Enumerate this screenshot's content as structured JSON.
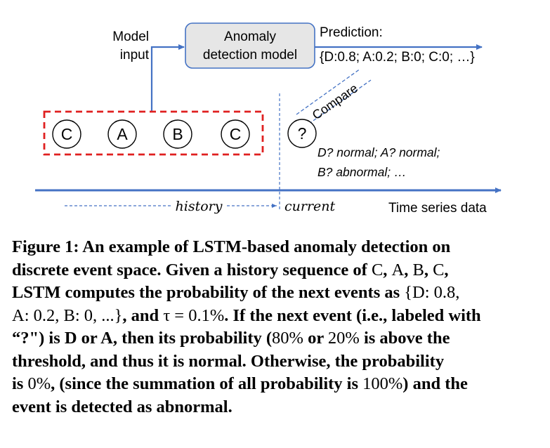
{
  "figure": {
    "model_input_label_1": "Model",
    "model_input_label_2": "input",
    "model_box_line_1": "Anomaly",
    "model_box_line_2": "detection model",
    "prediction_label": "Prediction:",
    "prediction_values": "{D:0.8; A:0.2; B:0; C:0; …}",
    "compare_label": "Compare",
    "history_events": [
      "C",
      "A",
      "B",
      "C"
    ],
    "current_event": "?",
    "result_line_1": "D? normal; A? normal;",
    "result_line_2": "B? abnormal; …",
    "history_label": "history",
    "current_label": "current",
    "axis_label": "Time series data",
    "colors": {
      "model_arrow": "#4472c4",
      "box_fill": "#e6e6e6",
      "box_stroke": "#4472c4",
      "history_box": "#e02020",
      "axis": "#4472c4"
    }
  },
  "caption": {
    "lines": [
      [
        "Figure 1: An example of LSTM-based anomaly detection on"
      ],
      [
        "discrete event space. Given a history sequence of ",
        {
          "n": "C"
        },
        ", ",
        {
          "n": "A"
        },
        ", ",
        {
          "n": "B"
        },
        ", ",
        {
          "n": "C"
        },
        ","
      ],
      [
        "LSTM computes the probability of the next events as ",
        {
          "n": "{D: 0.8,"
        }
      ],
      [
        {
          "n": "A: 0.2, B: 0, ...}"
        },
        ", and ",
        {
          "n": "τ = 0.1%"
        },
        ". If the next event (i.e., labeled with"
      ],
      [
        "“?\") is D or A, then its probability (",
        {
          "n": "80%"
        },
        " or ",
        {
          "n": "20%"
        },
        " is above the"
      ],
      [
        "threshold, and thus it is normal. Otherwise, the probability"
      ],
      [
        "is ",
        {
          "n": "0%"
        },
        ", (since the summation of all probability is ",
        {
          "n": "100%"
        },
        ") and the"
      ],
      [
        "event is detected as abnormal."
      ]
    ]
  }
}
